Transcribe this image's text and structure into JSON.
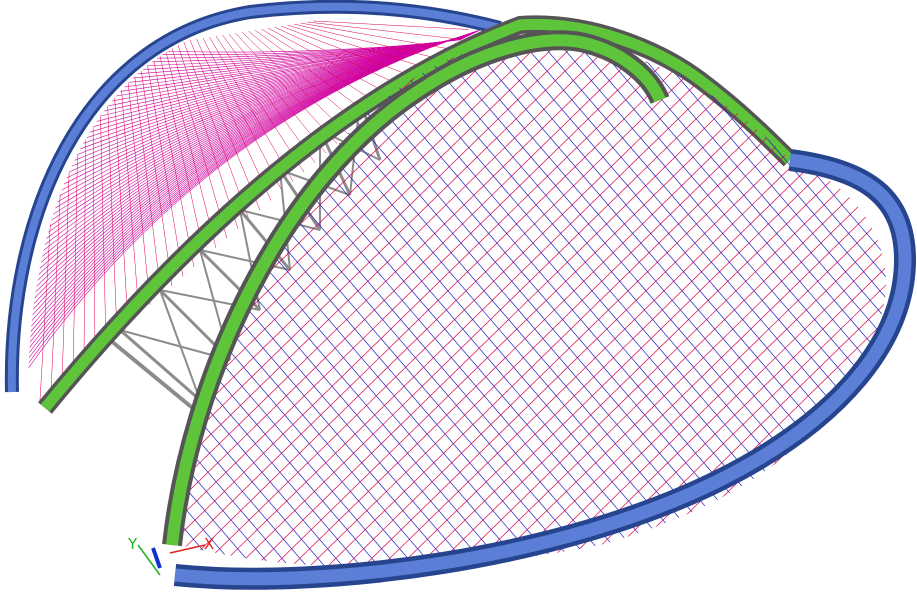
{
  "viewport": {
    "background": "#ffffff",
    "model": "arched-dome-roof-structure"
  },
  "colors": {
    "blue_arch": "#5b7fd6",
    "blue_arch_edge": "#27458f",
    "green_arch": "#5ec43a",
    "green_arch_edge": "#2d7a1e",
    "steel_gray": "#8c8c8c",
    "steel_dark": "#555555",
    "cable_red": "#e0004a",
    "cable_blue": "#2020c8",
    "cable_magenta": "#d000a0"
  },
  "axis_triad": {
    "x_label": "X",
    "y_label": "Y",
    "x_color": "#e02020",
    "y_color": "#20b020",
    "z_color": "#1030d0"
  }
}
